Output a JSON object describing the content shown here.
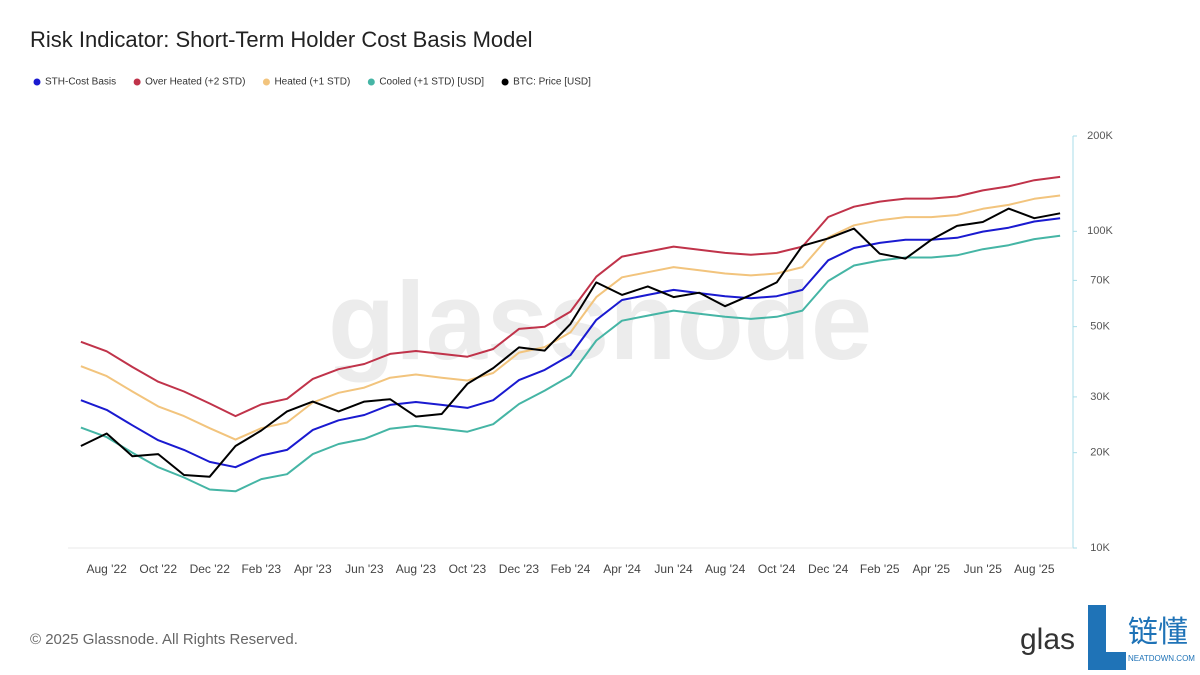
{
  "chart_data": {
    "type": "line",
    "title": "Risk Indicator: Short-Term Holder Cost Basis Model",
    "watermark": "glassnode",
    "categories": [
      null,
      "Aug '22",
      null,
      "Oct '22",
      null,
      "Dec '22",
      null,
      "Feb '23",
      null,
      "Apr '23",
      null,
      "Jun '23",
      null,
      "Aug '23",
      null,
      "Oct '23",
      null,
      "Dec '23",
      null,
      "Feb '24",
      null,
      "Apr '24",
      null,
      "Jun '24",
      null,
      "Aug '24",
      null,
      "Oct '24",
      null,
      "Dec '24",
      null,
      "Feb '25",
      null,
      "Apr '25",
      null,
      "Jun '25",
      null,
      "Aug '25",
      null
    ],
    "yscale": "log",
    "ylim": [
      10000,
      200000
    ],
    "yticks": [
      {
        "value": 10000,
        "label": "10K"
      },
      {
        "value": 20000,
        "label": "20K"
      },
      {
        "value": 30000,
        "label": "30K"
      },
      {
        "value": 50000,
        "label": "50K"
      },
      {
        "value": 70000,
        "label": "70K"
      },
      {
        "value": 100000,
        "label": "100K"
      },
      {
        "value": 200000,
        "label": "200K"
      }
    ],
    "legend": "top-left",
    "series": [
      {
        "name": "STH-Cost Basis",
        "color": "#1a1ad0",
        "values": [
          29300,
          27300,
          24400,
          21900,
          20400,
          18700,
          18000,
          19600,
          20400,
          23600,
          25300,
          26300,
          28300,
          28900,
          28300,
          27700,
          29300,
          33900,
          36500,
          40700,
          52500,
          60700,
          63000,
          65300,
          63800,
          62400,
          61500,
          62400,
          65300,
          81000,
          88600,
          91900,
          94000,
          94000,
          95400,
          99800,
          102700,
          107400,
          110000
        ]
      },
      {
        "name": "Over Heated (+2 STD)",
        "color": "#c0334a",
        "values": [
          44800,
          41800,
          37300,
          33500,
          31200,
          28600,
          26100,
          28400,
          29600,
          34200,
          36700,
          38100,
          41000,
          41900,
          41000,
          40200,
          42500,
          49200,
          50000,
          55800,
          71900,
          83200,
          86300,
          89500,
          87400,
          85500,
          84300,
          85500,
          89500,
          111000,
          119600,
          124100,
          126900,
          126900,
          128800,
          134700,
          138600,
          145000,
          148500
        ]
      },
      {
        "name": "Heated (+1 STD)",
        "color": "#f2c47d",
        "values": [
          37500,
          34900,
          31200,
          28000,
          26100,
          23900,
          22000,
          23900,
          24900,
          28800,
          30900,
          32100,
          34500,
          35300,
          34500,
          33800,
          35700,
          41400,
          43100,
          48000,
          62000,
          71600,
          74300,
          77100,
          75300,
          73600,
          72600,
          73600,
          77100,
          95600,
          104500,
          108400,
          110900,
          110900,
          112600,
          117800,
          121200,
          126700,
          129800
        ]
      },
      {
        "name": "Cooled (+1 STD) [USD]",
        "color": "#45b5a5",
        "values": [
          24000,
          22400,
          20000,
          18000,
          16700,
          15300,
          15100,
          16500,
          17100,
          19800,
          21300,
          22100,
          23800,
          24300,
          23800,
          23300,
          24600,
          28500,
          31400,
          35000,
          45200,
          52200,
          54200,
          56200,
          54900,
          53700,
          52900,
          53700,
          56200,
          69700,
          78000,
          80900,
          82700,
          82700,
          84000,
          87800,
          90400,
          94500,
          96800
        ]
      },
      {
        "name": "BTC: Price [USD]",
        "color": "#000000",
        "values": [
          21000,
          23000,
          19500,
          19800,
          17000,
          16800,
          21000,
          23500,
          27000,
          29000,
          27000,
          29000,
          29500,
          26000,
          26500,
          33000,
          37000,
          43000,
          42000,
          51000,
          69000,
          63000,
          67000,
          62000,
          64000,
          58000,
          63000,
          69000,
          90000,
          95000,
          102000,
          85000,
          82000,
          94000,
          104000,
          107000,
          118000,
          110000,
          114000
        ]
      }
    ]
  },
  "footer": {
    "copyright": "© 2025 Glassnode. All Rights Reserved.",
    "logo_text": "glas",
    "brand": "链懂",
    "brand_url": "NEATDOWN.COM"
  }
}
